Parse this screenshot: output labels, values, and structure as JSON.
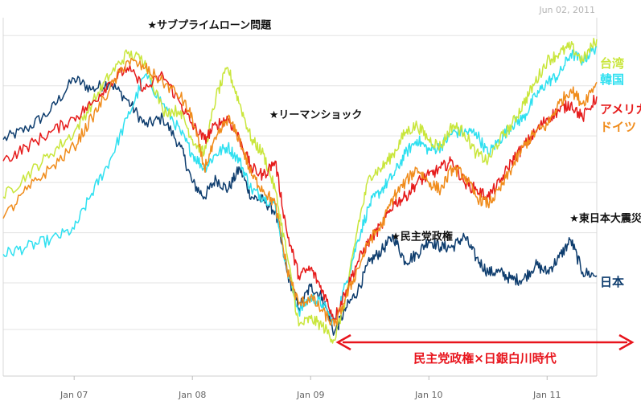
{
  "date_stamp": "Jun 02, 2011",
  "annotation_arrow": {
    "label": "民主党政権×日銀白川時代",
    "color": "#e8141c",
    "from": "2009-03",
    "to": "2011-06"
  },
  "chart_data": {
    "type": "line",
    "title": "",
    "xlabel": "",
    "ylabel": "",
    "x_ticks": [
      "Jan 07",
      "Jan 08",
      "Jan 09",
      "Jan 10",
      "Jan 11"
    ],
    "x_tick_dates": [
      2007.0,
      2008.0,
      2009.0,
      2010.0,
      2011.0
    ],
    "xlim": [
      2006.4,
      2011.42
    ],
    "ylim": [
      0,
      100
    ],
    "y_axis_labels_shown": false,
    "grid": "horizontal",
    "gridlines": [
      13,
      26,
      40,
      54,
      67,
      81,
      95
    ],
    "events": [
      {
        "label": "★サブプライムローン問題",
        "x": 2007.62,
        "y": 97
      },
      {
        "label": "★リーマンショック",
        "x": 2008.65,
        "y": 72
      },
      {
        "label": "★民主党政権",
        "x": 2009.68,
        "y": 38
      },
      {
        "label": "★東日本大震災",
        "x": 2011.19,
        "y": 43
      }
    ],
    "series": [
      {
        "name": "日本",
        "color": "#0e3d6e",
        "values": [
          [
            2006.4,
            66
          ],
          [
            2006.6,
            69
          ],
          [
            2006.8,
            74
          ],
          [
            2007.0,
            83
          ],
          [
            2007.15,
            80
          ],
          [
            2007.3,
            82
          ],
          [
            2007.45,
            77
          ],
          [
            2007.6,
            70
          ],
          [
            2007.75,
            72
          ],
          [
            2007.9,
            64
          ],
          [
            2008.0,
            54
          ],
          [
            2008.1,
            50
          ],
          [
            2008.2,
            55
          ],
          [
            2008.3,
            52
          ],
          [
            2008.4,
            58
          ],
          [
            2008.5,
            50
          ],
          [
            2008.6,
            49
          ],
          [
            2008.7,
            46
          ],
          [
            2008.8,
            29
          ],
          [
            2008.9,
            19
          ],
          [
            2009.0,
            25
          ],
          [
            2009.1,
            22
          ],
          [
            2009.2,
            12
          ],
          [
            2009.3,
            19
          ],
          [
            2009.4,
            24
          ],
          [
            2009.5,
            32
          ],
          [
            2009.6,
            35
          ],
          [
            2009.7,
            39
          ],
          [
            2009.8,
            32
          ],
          [
            2009.9,
            34
          ],
          [
            2010.0,
            38
          ],
          [
            2010.1,
            36
          ],
          [
            2010.2,
            36
          ],
          [
            2010.3,
            39
          ],
          [
            2010.4,
            33
          ],
          [
            2010.5,
            29
          ],
          [
            2010.6,
            29
          ],
          [
            2010.7,
            27
          ],
          [
            2010.8,
            27
          ],
          [
            2010.9,
            31
          ],
          [
            2011.0,
            29
          ],
          [
            2011.1,
            33
          ],
          [
            2011.2,
            38
          ],
          [
            2011.3,
            29
          ],
          [
            2011.42,
            28
          ]
        ]
      },
      {
        "name": "韓国",
        "color": "#2fe0f0",
        "values": [
          [
            2006.4,
            34
          ],
          [
            2006.6,
            36
          ],
          [
            2006.8,
            38
          ],
          [
            2007.0,
            41
          ],
          [
            2007.15,
            51
          ],
          [
            2007.3,
            60
          ],
          [
            2007.45,
            72
          ],
          [
            2007.6,
            84
          ],
          [
            2007.75,
            76
          ],
          [
            2007.9,
            68
          ],
          [
            2008.0,
            62
          ],
          [
            2008.1,
            58
          ],
          [
            2008.2,
            62
          ],
          [
            2008.3,
            64
          ],
          [
            2008.4,
            60
          ],
          [
            2008.5,
            52
          ],
          [
            2008.6,
            50
          ],
          [
            2008.7,
            48
          ],
          [
            2008.8,
            30
          ],
          [
            2008.9,
            18
          ],
          [
            2009.0,
            22
          ],
          [
            2009.1,
            20
          ],
          [
            2009.2,
            15
          ],
          [
            2009.3,
            26
          ],
          [
            2009.4,
            38
          ],
          [
            2009.5,
            48
          ],
          [
            2009.6,
            52
          ],
          [
            2009.7,
            56
          ],
          [
            2009.8,
            62
          ],
          [
            2009.9,
            66
          ],
          [
            2010.0,
            63
          ],
          [
            2010.1,
            64
          ],
          [
            2010.2,
            68
          ],
          [
            2010.3,
            68
          ],
          [
            2010.4,
            68
          ],
          [
            2010.5,
            62
          ],
          [
            2010.6,
            66
          ],
          [
            2010.7,
            70
          ],
          [
            2010.8,
            72
          ],
          [
            2010.9,
            78
          ],
          [
            2011.0,
            82
          ],
          [
            2011.1,
            84
          ],
          [
            2011.2,
            90
          ],
          [
            2011.3,
            88
          ],
          [
            2011.42,
            92
          ]
        ]
      },
      {
        "name": "台湾",
        "color": "#c9e63c",
        "values": [
          [
            2006.4,
            50
          ],
          [
            2006.6,
            56
          ],
          [
            2006.8,
            62
          ],
          [
            2007.0,
            68
          ],
          [
            2007.15,
            76
          ],
          [
            2007.3,
            84
          ],
          [
            2007.45,
            90
          ],
          [
            2007.6,
            88
          ],
          [
            2007.75,
            74
          ],
          [
            2007.9,
            74
          ],
          [
            2008.0,
            66
          ],
          [
            2008.1,
            62
          ],
          [
            2008.2,
            78
          ],
          [
            2008.3,
            86
          ],
          [
            2008.4,
            76
          ],
          [
            2008.5,
            66
          ],
          [
            2008.6,
            62
          ],
          [
            2008.7,
            52
          ],
          [
            2008.8,
            34
          ],
          [
            2008.9,
            14
          ],
          [
            2009.0,
            16
          ],
          [
            2009.1,
            14
          ],
          [
            2009.2,
            10
          ],
          [
            2009.3,
            22
          ],
          [
            2009.4,
            42
          ],
          [
            2009.5,
            56
          ],
          [
            2009.6,
            58
          ],
          [
            2009.7,
            62
          ],
          [
            2009.8,
            68
          ],
          [
            2009.9,
            70
          ],
          [
            2010.0,
            66
          ],
          [
            2010.1,
            64
          ],
          [
            2010.2,
            70
          ],
          [
            2010.3,
            68
          ],
          [
            2010.4,
            62
          ],
          [
            2010.5,
            60
          ],
          [
            2010.6,
            66
          ],
          [
            2010.7,
            70
          ],
          [
            2010.8,
            76
          ],
          [
            2010.9,
            82
          ],
          [
            2011.0,
            88
          ],
          [
            2011.1,
            90
          ],
          [
            2011.2,
            92
          ],
          [
            2011.3,
            88
          ],
          [
            2011.42,
            94
          ]
        ]
      },
      {
        "name": "アメリカ",
        "color": "#e61c1c",
        "values": [
          [
            2006.4,
            60
          ],
          [
            2006.6,
            64
          ],
          [
            2006.8,
            68
          ],
          [
            2007.0,
            72
          ],
          [
            2007.15,
            76
          ],
          [
            2007.3,
            82
          ],
          [
            2007.45,
            86
          ],
          [
            2007.6,
            80
          ],
          [
            2007.75,
            84
          ],
          [
            2007.9,
            76
          ],
          [
            2008.0,
            70
          ],
          [
            2008.1,
            66
          ],
          [
            2008.2,
            70
          ],
          [
            2008.3,
            72
          ],
          [
            2008.4,
            66
          ],
          [
            2008.5,
            58
          ],
          [
            2008.6,
            56
          ],
          [
            2008.7,
            60
          ],
          [
            2008.8,
            40
          ],
          [
            2008.9,
            28
          ],
          [
            2009.0,
            30
          ],
          [
            2009.1,
            24
          ],
          [
            2009.2,
            16
          ],
          [
            2009.3,
            24
          ],
          [
            2009.4,
            32
          ],
          [
            2009.5,
            38
          ],
          [
            2009.6,
            42
          ],
          [
            2009.7,
            48
          ],
          [
            2009.8,
            50
          ],
          [
            2009.9,
            54
          ],
          [
            2010.0,
            56
          ],
          [
            2010.1,
            58
          ],
          [
            2010.2,
            60
          ],
          [
            2010.3,
            54
          ],
          [
            2010.4,
            52
          ],
          [
            2010.5,
            50
          ],
          [
            2010.6,
            54
          ],
          [
            2010.7,
            60
          ],
          [
            2010.8,
            64
          ],
          [
            2010.9,
            68
          ],
          [
            2011.0,
            72
          ],
          [
            2011.1,
            74
          ],
          [
            2011.2,
            76
          ],
          [
            2011.3,
            72
          ],
          [
            2011.42,
            78
          ]
        ]
      },
      {
        "name": "ドイツ",
        "color": "#f08c1c",
        "values": [
          [
            2006.4,
            44
          ],
          [
            2006.6,
            52
          ],
          [
            2006.8,
            58
          ],
          [
            2007.0,
            64
          ],
          [
            2007.15,
            72
          ],
          [
            2007.3,
            80
          ],
          [
            2007.45,
            88
          ],
          [
            2007.6,
            86
          ],
          [
            2007.75,
            82
          ],
          [
            2007.9,
            78
          ],
          [
            2008.0,
            72
          ],
          [
            2008.1,
            58
          ],
          [
            2008.2,
            66
          ],
          [
            2008.3,
            72
          ],
          [
            2008.4,
            66
          ],
          [
            2008.5,
            56
          ],
          [
            2008.6,
            52
          ],
          [
            2008.7,
            48
          ],
          [
            2008.8,
            30
          ],
          [
            2008.9,
            20
          ],
          [
            2009.0,
            22
          ],
          [
            2009.1,
            18
          ],
          [
            2009.2,
            14
          ],
          [
            2009.3,
            22
          ],
          [
            2009.4,
            30
          ],
          [
            2009.5,
            38
          ],
          [
            2009.6,
            42
          ],
          [
            2009.7,
            50
          ],
          [
            2009.8,
            54
          ],
          [
            2009.9,
            58
          ],
          [
            2010.0,
            54
          ],
          [
            2010.1,
            52
          ],
          [
            2010.2,
            58
          ],
          [
            2010.3,
            56
          ],
          [
            2010.4,
            50
          ],
          [
            2010.5,
            48
          ],
          [
            2010.6,
            52
          ],
          [
            2010.7,
            58
          ],
          [
            2010.8,
            64
          ],
          [
            2010.9,
            68
          ],
          [
            2011.0,
            70
          ],
          [
            2011.1,
            76
          ],
          [
            2011.2,
            80
          ],
          [
            2011.3,
            76
          ],
          [
            2011.42,
            82
          ]
        ]
      }
    ],
    "legend": {
      "placement": "right-end",
      "entries": [
        "台湾",
        "韓国",
        "アメリカ",
        "ドイツ",
        "日本"
      ],
      "colors": [
        "#c9e63c",
        "#2fe0f0",
        "#e61c1c",
        "#f08c1c",
        "#0e3d6e"
      ]
    }
  }
}
